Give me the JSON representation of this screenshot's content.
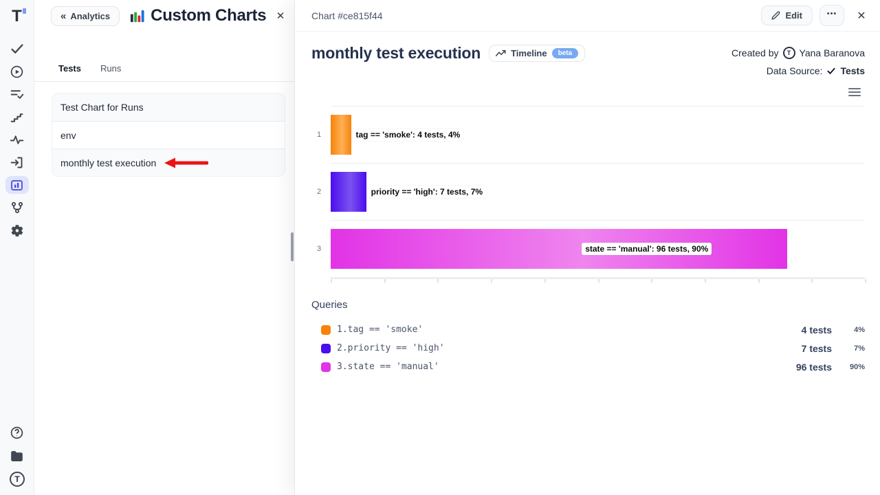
{
  "app": {
    "logo_letter": "T",
    "sidebar_icons": [
      "check",
      "play-circle",
      "task-list",
      "steps",
      "activity",
      "import",
      "bar-chart",
      "git-branch",
      "settings-gear"
    ],
    "sidebar_footer_icons": [
      "help",
      "projects-folder",
      "account-logo"
    ],
    "active_sidebar_icon": "bar-chart"
  },
  "background_page": {
    "back_button_label": "Analytics",
    "title": "Custom Charts",
    "close_icon": "×",
    "tabs": [
      {
        "label": "Tests",
        "active": true
      },
      {
        "label": "Runs",
        "active": false
      }
    ],
    "chart_list": [
      {
        "label": "Test Chart for Runs"
      },
      {
        "label": "env"
      },
      {
        "label": "monthly test execution"
      }
    ],
    "annotation": "red-arrow-pointing-left-at-monthly-test-execution"
  },
  "panel": {
    "header_title": "Chart #ce815f44",
    "edit_button": "Edit",
    "more_button": "•••",
    "close_icon": "✕",
    "title": "monthly test execution",
    "timeline_button": "Timeline",
    "beta_badge": "beta",
    "created_by_label": "Created by",
    "created_by_name": "Yana Baranova",
    "data_source_label": "Data Source:",
    "data_source_value": "Tests"
  },
  "chart_data": {
    "type": "bar",
    "orientation": "horizontal",
    "categories": [
      "1",
      "2",
      "3"
    ],
    "series": [
      {
        "name": "tests",
        "values": [
          4,
          7,
          96
        ]
      }
    ],
    "percent_of_total": [
      4,
      7,
      90
    ],
    "bar_labels": [
      "tag == 'smoke': 4 tests, 4%",
      "priority == 'high': 7 tests, 7%",
      "state == 'manual': 96 tests, 90%"
    ],
    "bar_colors": [
      "#f8820b",
      "#4c0dee",
      "#e233e6"
    ],
    "bar_colors_light": [
      "#fcb054",
      "#7b52f1",
      "#ef85ee"
    ],
    "xlim": [
      0,
      100
    ],
    "x_tick_count": 10,
    "grid": true,
    "legend_position": "none"
  },
  "queries": {
    "title": "Queries",
    "items": [
      {
        "num": "1.",
        "query": "tag == 'smoke'",
        "color": "#f8820b",
        "count": "4 tests",
        "percent": "4%"
      },
      {
        "num": "2.",
        "query": "priority == 'high'",
        "color": "#4c0dee",
        "count": "7 tests",
        "percent": "7%"
      },
      {
        "num": "3.",
        "query": "state == 'manual'",
        "color": "#e233e6",
        "count": "96 tests",
        "percent": "90%"
      }
    ]
  }
}
